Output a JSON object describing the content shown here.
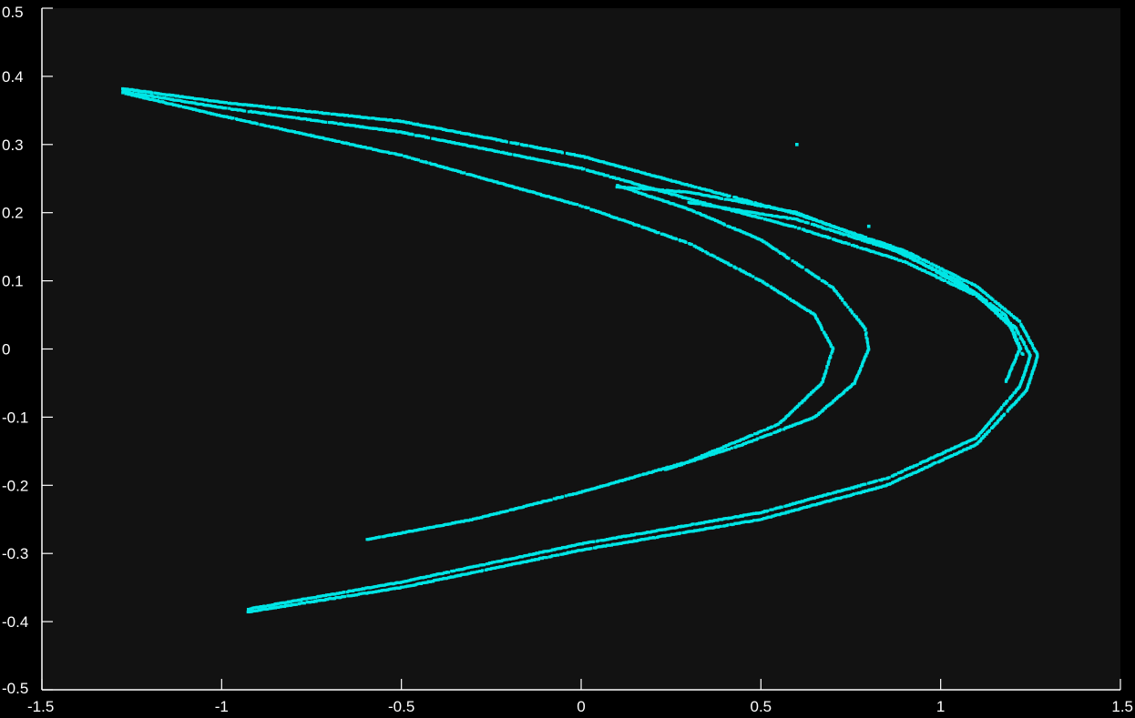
{
  "chart_data": {
    "type": "scatter",
    "title": "",
    "xlabel": "",
    "ylabel": "",
    "xlim": [
      -1.5,
      1.5
    ],
    "ylim": [
      -0.5,
      0.5
    ],
    "x_ticks": [
      -1.5,
      -1,
      -0.5,
      0,
      0.5,
      1,
      1.5
    ],
    "x_tick_labels": [
      "-1.5",
      "-1",
      "-0.5",
      "0",
      "0.5",
      "1",
      "1.5"
    ],
    "y_ticks": [
      0.5,
      0.4,
      0.3,
      0.2,
      0.1,
      0,
      -0.1,
      -0.2,
      -0.3,
      -0.4,
      -0.5
    ],
    "y_tick_labels": [
      "0.5",
      "0.4",
      "0.3",
      "0.2",
      "0.1",
      "0",
      "-0.1",
      "-0.2",
      "-0.3",
      "-0.4",
      "-0.5"
    ],
    "grid": false,
    "legend": "none",
    "colors": {
      "background": "#000000",
      "plot_area": "#121212",
      "axis": "#ffffff",
      "points": "#00e6e6"
    },
    "series": [
      {
        "strands": [
          [
            [
              -1.275,
              0.382
            ],
            [
              -1.0,
              0.362
            ],
            [
              -0.5,
              0.334
            ],
            [
              0.0,
              0.283
            ],
            [
              0.3,
              0.24
            ],
            [
              0.6,
              0.198
            ],
            [
              0.9,
              0.144
            ],
            [
              1.1,
              0.092
            ],
            [
              1.22,
              0.04
            ],
            [
              1.27,
              -0.01
            ],
            [
              1.24,
              -0.06
            ],
            [
              1.1,
              -0.14
            ],
            [
              0.85,
              -0.2
            ],
            [
              0.5,
              -0.25
            ],
            [
              0.0,
              -0.295
            ],
            [
              -0.5,
              -0.35
            ],
            [
              -0.93,
              -0.386
            ]
          ],
          [
            [
              -1.275,
              0.378
            ],
            [
              -1.0,
              0.354
            ],
            [
              -0.5,
              0.318
            ],
            [
              0.0,
              0.265
            ],
            [
              0.3,
              0.22
            ],
            [
              0.6,
              0.178
            ],
            [
              0.9,
              0.128
            ],
            [
              1.1,
              0.078
            ],
            [
              1.21,
              0.03
            ],
            [
              1.25,
              -0.01
            ],
            [
              1.22,
              -0.055
            ],
            [
              1.1,
              -0.13
            ],
            [
              0.85,
              -0.19
            ],
            [
              0.5,
              -0.24
            ],
            [
              0.0,
              -0.286
            ],
            [
              -0.5,
              -0.342
            ],
            [
              -0.93,
              -0.382
            ]
          ],
          [
            [
              -1.275,
              0.376
            ],
            [
              -1.0,
              0.342
            ],
            [
              -0.5,
              0.284
            ],
            [
              0.0,
              0.21
            ],
            [
              0.3,
              0.155
            ],
            [
              0.5,
              0.1
            ],
            [
              0.65,
              0.05
            ],
            [
              0.7,
              0.0
            ],
            [
              0.67,
              -0.05
            ],
            [
              0.55,
              -0.11
            ],
            [
              0.3,
              -0.165
            ],
            [
              0.0,
              -0.21
            ],
            [
              -0.3,
              -0.25
            ],
            [
              -0.6,
              -0.28
            ]
          ],
          [
            [
              0.1,
              0.24
            ],
            [
              0.3,
              0.205
            ],
            [
              0.5,
              0.16
            ],
            [
              0.7,
              0.09
            ],
            [
              0.79,
              0.03
            ],
            [
              0.8,
              0.0
            ],
            [
              0.76,
              -0.05
            ],
            [
              0.65,
              -0.1
            ],
            [
              0.45,
              -0.14
            ],
            [
              0.23,
              -0.178
            ]
          ],
          [
            [
              0.1,
              0.238
            ],
            [
              0.3,
              0.23
            ],
            [
              0.6,
              0.2
            ],
            [
              0.85,
              0.15
            ],
            [
              1.05,
              0.1
            ],
            [
              1.18,
              0.05
            ],
            [
              1.22,
              0.0
            ],
            [
              1.18,
              -0.05
            ]
          ],
          [
            [
              0.3,
              0.215
            ],
            [
              0.6,
              0.19
            ],
            [
              0.9,
              0.14
            ],
            [
              1.1,
              0.08
            ],
            [
              1.2,
              0.03
            ],
            [
              1.23,
              -0.01
            ]
          ]
        ],
        "isolated_points": [
          [
            0.6,
            0.3
          ],
          [
            0.8,
            0.18
          ]
        ]
      }
    ]
  }
}
